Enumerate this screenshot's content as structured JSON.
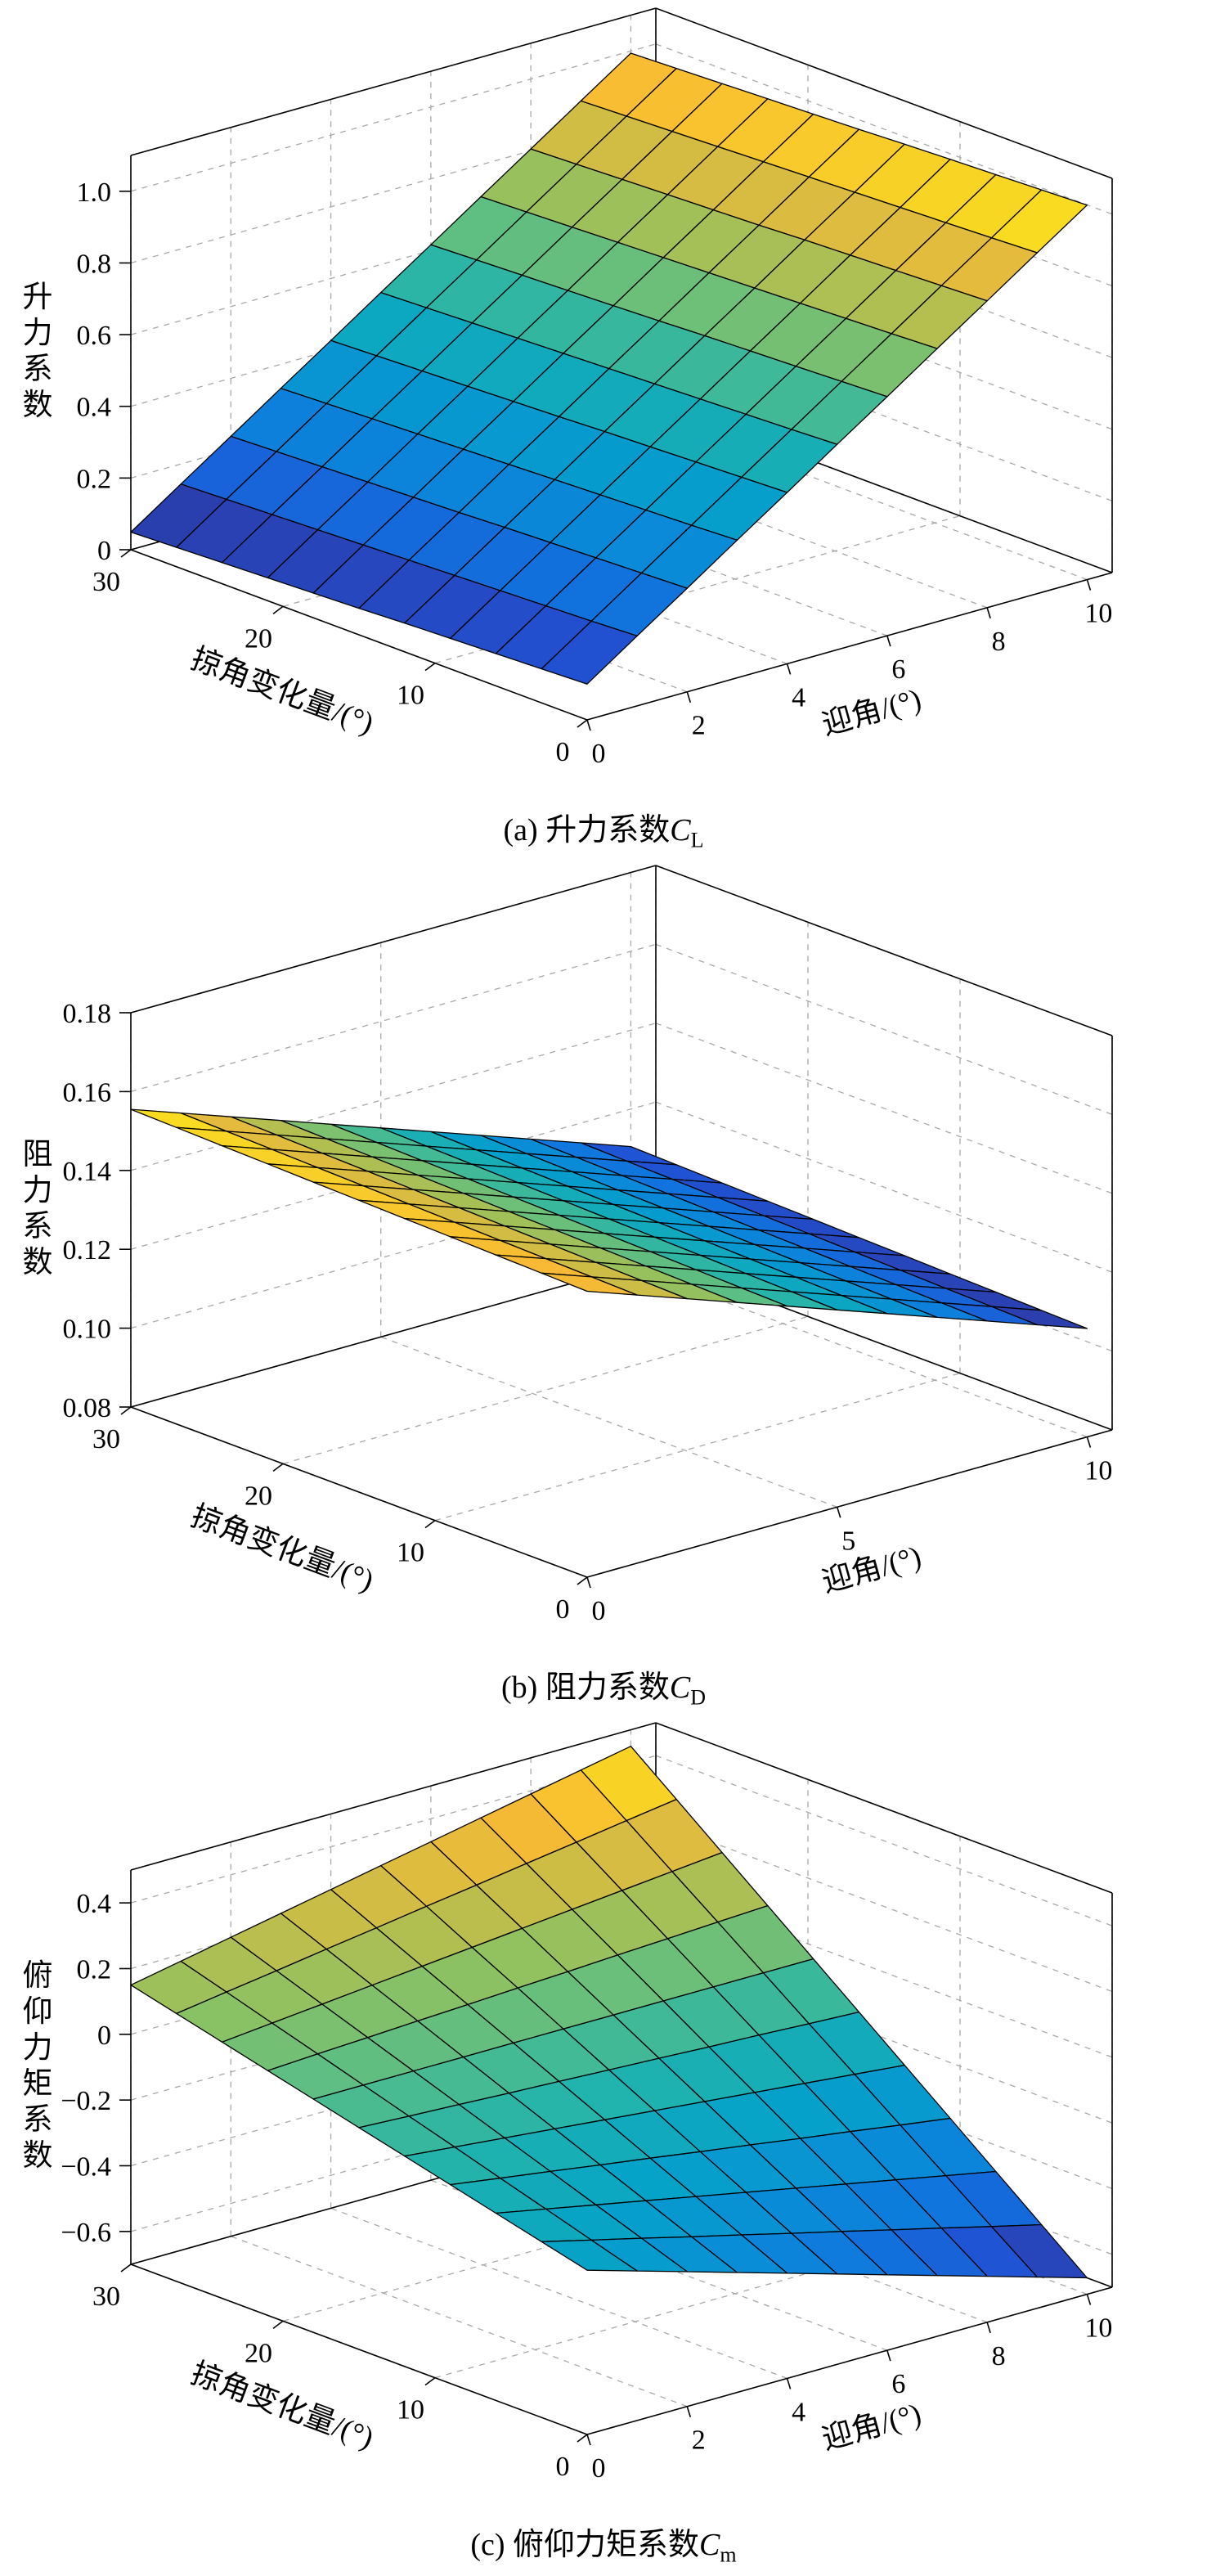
{
  "style": {
    "background": "#ffffff",
    "axis_color": "#000000",
    "grid_color": "#a8a8a8",
    "mesh_edge_color": "#000000",
    "colormap": [
      "#352a87",
      "#2053d4",
      "#0f77de",
      "#098ed6",
      "#05a2c9",
      "#1eb2af",
      "#53bd8a",
      "#90c160",
      "#cbbd46",
      "#f8ba34",
      "#f9fb0e"
    ]
  },
  "chart_data": [
    {
      "type": "surface",
      "caption": {
        "prefix": "(a) 升力系数",
        "symbol": "C",
        "sub": "L"
      },
      "xlabel": "迎角/(°)",
      "ylabel": "掠角变化量/(°)",
      "zlabel": "升力系数",
      "xlim": [
        0,
        10.5
      ],
      "ylim": [
        0,
        30
      ],
      "zlim": [
        0,
        1.1
      ],
      "xticks": [
        0,
        2,
        4,
        6,
        8,
        10
      ],
      "xtick_labels": [
        "0",
        "2",
        "4",
        "6",
        "8",
        "10"
      ],
      "yticks": [
        0,
        10,
        20,
        30
      ],
      "ytick_labels": [
        "0",
        "10",
        "20",
        "30"
      ],
      "zticks": [
        0,
        0.2,
        0.4,
        0.6,
        0.8,
        1.0
      ],
      "ztick_labels": [
        "0",
        "0.2",
        "0.4",
        "0.6",
        "0.8",
        "1.0"
      ],
      "x": [
        0,
        1,
        2,
        3,
        4,
        5,
        6,
        7,
        8,
        9,
        10
      ],
      "y": [
        0,
        3,
        6,
        9,
        12,
        15,
        18,
        21,
        24,
        27,
        30
      ],
      "z": [
        [
          0.1,
          0.195,
          0.289,
          0.384,
          0.478,
          0.573,
          0.667,
          0.762,
          0.856,
          0.951,
          1.045
        ],
        [
          0.095,
          0.189,
          0.284,
          0.378,
          0.473,
          0.567,
          0.662,
          0.756,
          0.851,
          0.945,
          1.04
        ],
        [
          0.09,
          0.184,
          0.279,
          0.373,
          0.468,
          0.562,
          0.657,
          0.751,
          0.846,
          0.94,
          1.035
        ],
        [
          0.085,
          0.179,
          0.274,
          0.368,
          0.463,
          0.557,
          0.652,
          0.746,
          0.841,
          0.935,
          1.03
        ],
        [
          0.08,
          0.174,
          0.269,
          0.363,
          0.458,
          0.552,
          0.647,
          0.741,
          0.836,
          0.93,
          1.025
        ],
        [
          0.074,
          0.169,
          0.263,
          0.358,
          0.452,
          0.547,
          0.641,
          0.736,
          0.83,
          0.925,
          1.019
        ],
        [
          0.069,
          0.164,
          0.258,
          0.353,
          0.447,
          0.542,
          0.636,
          0.731,
          0.825,
          0.92,
          1.014
        ],
        [
          0.064,
          0.159,
          0.253,
          0.348,
          0.442,
          0.537,
          0.631,
          0.726,
          0.82,
          0.915,
          1.009
        ],
        [
          0.059,
          0.154,
          0.248,
          0.343,
          0.437,
          0.532,
          0.626,
          0.721,
          0.815,
          0.91,
          1.004
        ],
        [
          0.054,
          0.149,
          0.243,
          0.338,
          0.432,
          0.527,
          0.621,
          0.716,
          0.81,
          0.905,
          0.999
        ],
        [
          0.049,
          0.144,
          0.238,
          0.333,
          0.427,
          0.522,
          0.616,
          0.711,
          0.805,
          0.9,
          0.994
        ]
      ]
    },
    {
      "type": "surface",
      "caption": {
        "prefix": "(b) 阻力系数",
        "symbol": "C",
        "sub": "D"
      },
      "xlabel": "迎角/(°)",
      "ylabel": "掠角变化量/(°)",
      "zlabel": "阻力系数",
      "xlim": [
        0,
        10.5
      ],
      "ylim": [
        0,
        30
      ],
      "zlim": [
        0.08,
        0.18
      ],
      "xticks": [
        0,
        5,
        10
      ],
      "xtick_labels": [
        "0",
        "5",
        "10"
      ],
      "yticks": [
        0,
        10,
        20,
        30
      ],
      "ytick_labels": [
        "0",
        "10",
        "20",
        "30"
      ],
      "zticks": [
        0.08,
        0.1,
        0.12,
        0.14,
        0.16,
        0.18
      ],
      "ztick_labels": [
        "0.08",
        "0.10",
        "0.12",
        "0.14",
        "0.16",
        "0.18"
      ],
      "x": [
        0,
        1,
        2,
        3,
        4,
        5,
        6,
        7,
        8,
        9,
        10
      ],
      "y": [
        0,
        3,
        6,
        9,
        12,
        15,
        18,
        21,
        24,
        27,
        30
      ],
      "z": [
        [
          0.1525,
          0.148,
          0.1435,
          0.139,
          0.1345,
          0.13,
          0.1255,
          0.121,
          0.1165,
          0.112,
          0.1075
        ],
        [
          0.1528,
          0.1483,
          0.1438,
          0.1393,
          0.1348,
          0.1303,
          0.1258,
          0.1213,
          0.1168,
          0.1123,
          0.1078
        ],
        [
          0.1531,
          0.1486,
          0.1441,
          0.1396,
          0.1351,
          0.1306,
          0.1261,
          0.1216,
          0.1171,
          0.1126,
          0.1081
        ],
        [
          0.1534,
          0.1489,
          0.1444,
          0.1399,
          0.1354,
          0.1309,
          0.1264,
          0.1219,
          0.1174,
          0.1129,
          0.1084
        ],
        [
          0.1537,
          0.1492,
          0.1447,
          0.1402,
          0.1357,
          0.1312,
          0.1267,
          0.1222,
          0.1177,
          0.1132,
          0.1087
        ],
        [
          0.154,
          0.1495,
          0.145,
          0.1405,
          0.136,
          0.1315,
          0.127,
          0.1225,
          0.118,
          0.1135,
          0.109
        ],
        [
          0.1543,
          0.1498,
          0.1453,
          0.1408,
          0.1363,
          0.1318,
          0.1273,
          0.1228,
          0.1183,
          0.1138,
          0.1093
        ],
        [
          0.1546,
          0.1501,
          0.1456,
          0.1411,
          0.1366,
          0.1321,
          0.1276,
          0.1231,
          0.1186,
          0.1141,
          0.1096
        ],
        [
          0.1549,
          0.1504,
          0.1459,
          0.1414,
          0.1369,
          0.1324,
          0.1279,
          0.1234,
          0.1189,
          0.1144,
          0.1099
        ],
        [
          0.1552,
          0.1507,
          0.1462,
          0.1417,
          0.1372,
          0.1327,
          0.1282,
          0.1237,
          0.1192,
          0.1147,
          0.1102
        ],
        [
          0.1555,
          0.151,
          0.1465,
          0.142,
          0.1375,
          0.133,
          0.1285,
          0.124,
          0.1195,
          0.115,
          0.1105
        ]
      ]
    },
    {
      "type": "surface",
      "caption": {
        "prefix": "(c) 俯仰力矩系数",
        "symbol": "C",
        "sub": "m"
      },
      "xlabel": "迎角/(°)",
      "ylabel": "掠角变化量/(°)",
      "zlabel": "俯仰力矩系数",
      "xlim": [
        0,
        10.5
      ],
      "ylim": [
        0,
        30
      ],
      "zlim": [
        -0.7,
        0.5
      ],
      "xticks": [
        0,
        2,
        4,
        6,
        8,
        10
      ],
      "xtick_labels": [
        "0",
        "2",
        "4",
        "6",
        "8",
        "10"
      ],
      "yticks": [
        0,
        10,
        20,
        30
      ],
      "ytick_labels": [
        "0",
        "10",
        "20",
        "30"
      ],
      "zticks": [
        -0.6,
        -0.4,
        -0.2,
        0,
        0.2,
        0.4
      ],
      "ztick_labels": [
        "−0.6",
        "−0.4",
        "−0.2",
        "0",
        "0.2",
        "0.4"
      ],
      "x": [
        0,
        1,
        2,
        3,
        4,
        5,
        6,
        7,
        8,
        9,
        10
      ],
      "y": [
        0,
        3,
        6,
        9,
        12,
        15,
        18,
        21,
        24,
        27,
        30
      ],
      "z": [
        [
          -0.2,
          -0.245,
          -0.29,
          -0.335,
          -0.38,
          -0.425,
          -0.47,
          -0.515,
          -0.56,
          -0.605,
          -0.65
        ],
        [
          -0.165,
          -0.203,
          -0.24,
          -0.278,
          -0.315,
          -0.353,
          -0.39,
          -0.428,
          -0.465,
          -0.503,
          -0.54
        ],
        [
          -0.13,
          -0.16,
          -0.19,
          -0.22,
          -0.25,
          -0.28,
          -0.31,
          -0.34,
          -0.37,
          -0.4,
          -0.43
        ],
        [
          -0.095,
          -0.118,
          -0.14,
          -0.163,
          -0.185,
          -0.208,
          -0.23,
          -0.253,
          -0.275,
          -0.298,
          -0.32
        ],
        [
          -0.06,
          -0.075,
          -0.09,
          -0.105,
          -0.12,
          -0.135,
          -0.15,
          -0.165,
          -0.18,
          -0.195,
          -0.21
        ],
        [
          -0.025,
          -0.033,
          -0.04,
          -0.048,
          -0.055,
          -0.063,
          -0.07,
          -0.078,
          -0.085,
          -0.093,
          -0.1
        ],
        [
          0.01,
          0.01,
          0.01,
          0.01,
          0.01,
          0.01,
          0.01,
          0.01,
          0.01,
          0.01,
          0.01
        ],
        [
          0.045,
          0.053,
          0.06,
          0.068,
          0.075,
          0.083,
          0.09,
          0.098,
          0.105,
          0.113,
          0.12
        ],
        [
          0.08,
          0.095,
          0.11,
          0.125,
          0.14,
          0.155,
          0.17,
          0.185,
          0.2,
          0.215,
          0.23
        ],
        [
          0.115,
          0.138,
          0.16,
          0.183,
          0.205,
          0.228,
          0.25,
          0.273,
          0.295,
          0.318,
          0.34
        ],
        [
          0.15,
          0.18,
          0.21,
          0.24,
          0.27,
          0.3,
          0.33,
          0.36,
          0.39,
          0.42,
          0.45
        ]
      ]
    }
  ]
}
